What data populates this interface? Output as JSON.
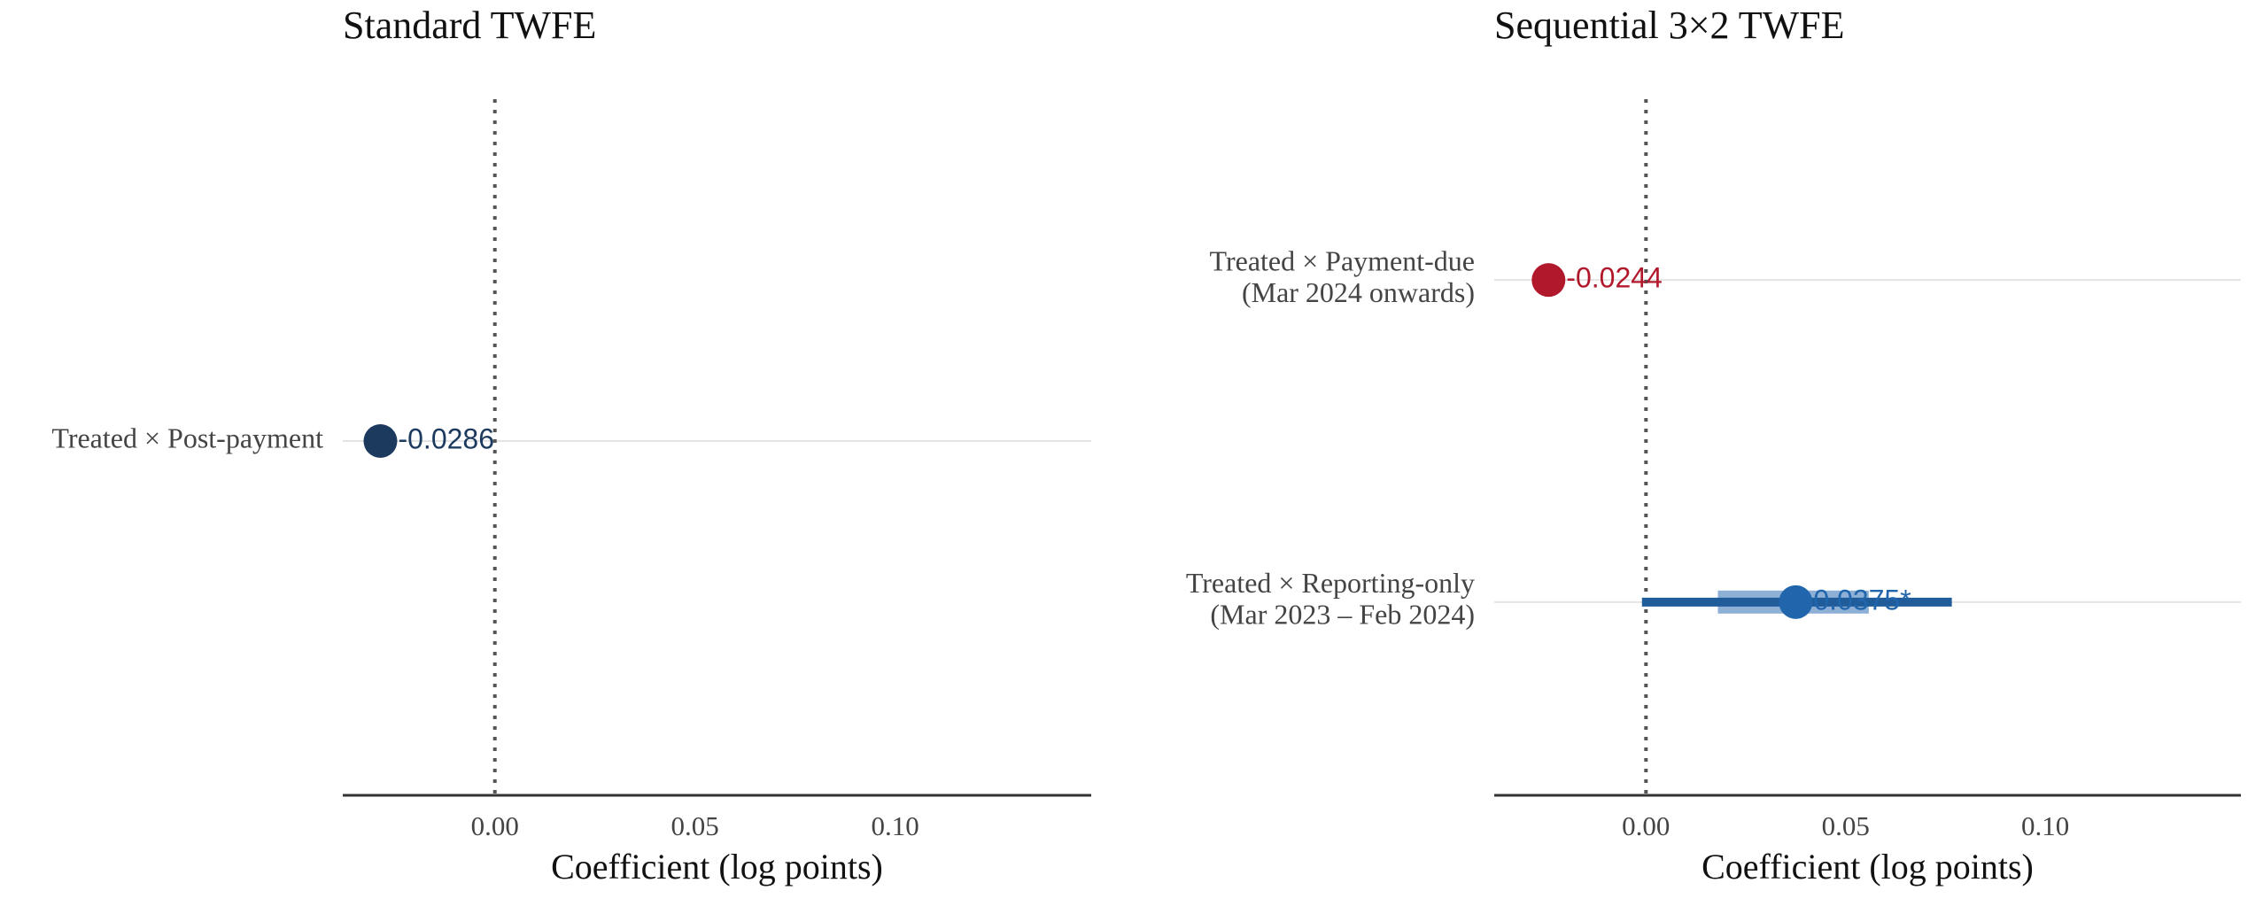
{
  "chart_data": [
    {
      "type": "forest",
      "title": "Standard TWFE",
      "xlabel": "Coefficient (log points)",
      "categories": [
        "Treated × Post-payment"
      ],
      "values": [
        -0.0286
      ],
      "value_labels": [
        "-0.0286"
      ],
      "colors": [
        "#1c3a5e"
      ],
      "xlim": [
        -0.038,
        0.149
      ],
      "xticks": [
        {
          "value": 0,
          "label": "0.00"
        },
        {
          "value": 0.05,
          "label": "0.05"
        },
        {
          "value": 0.1,
          "label": "0.10"
        }
      ],
      "ref_line": 0,
      "grid": true
    },
    {
      "type": "forest",
      "title": "Sequential 3×2 TWFE",
      "xlabel": "Coefficient (log points)",
      "categories": [
        "Treated × Payment-due\n(Mar 2024 onwards)",
        "Treated × Reporting-only\n(Mar 2023 – Feb 2024)"
      ],
      "values": [
        -0.0244,
        0.0375
      ],
      "value_labels": [
        "-0.0244",
        "0.0375*"
      ],
      "colors": [
        "#b2182b",
        "#2166ac"
      ],
      "ci_outer_low": [
        null,
        -0.001
      ],
      "ci_outer_high": [
        null,
        0.0766
      ],
      "ci_inner_low": [
        null,
        0.018
      ],
      "ci_inner_high": [
        null,
        0.0558
      ],
      "ci_outer_color": "#1f5c99",
      "ci_inner_color": "#8fb0d6",
      "xlim": [
        -0.038,
        0.149
      ],
      "xticks": [
        {
          "value": 0,
          "label": "0.00"
        },
        {
          "value": 0.05,
          "label": "0.05"
        },
        {
          "value": 0.1,
          "label": "0.10"
        }
      ],
      "ref_line": 0,
      "grid": true
    }
  ]
}
